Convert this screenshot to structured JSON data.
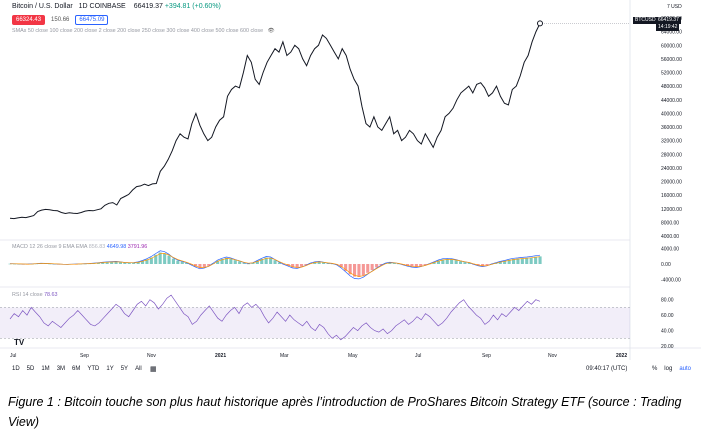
{
  "header": {
    "symbol": "Bitcoin / U.S. Dollar",
    "interval": "1D",
    "exchange": "COINBASE",
    "last": "66419.37",
    "change": "+394.81 (+0.60%)",
    "sell_price": "66324.43",
    "spread": "150.66",
    "buy_price": "66475.09"
  },
  "ma_label": "SMAs 50 close 100 close 200 close 2 close 200 close 250 close 300 close 400 close 500 close 600 close",
  "macd_label": {
    "name": "MACD 12 26 close 9 EMA EMA",
    "v1": "856.83",
    "v2": "4649.98",
    "v3": "3791.96"
  },
  "rsi_label": {
    "name": "RSI 14 close",
    "value": "78.63"
  },
  "price_axis": [
    "68000.00",
    "64000.00",
    "60000.00",
    "56000.00",
    "52000.00",
    "48000.00",
    "44000.00",
    "40000.00",
    "36000.00",
    "32000.00",
    "28000.00",
    "24000.00",
    "20000.00",
    "16000.00",
    "12000.00",
    "8000.00",
    "4000.00"
  ],
  "macd_axis": [
    "4000.00",
    "0.00",
    "-4000.00"
  ],
  "rsi_axis": [
    "80.00",
    "60.00",
    "40.00",
    "20.00"
  ],
  "time_axis": [
    "Jul",
    "Sep",
    "Nov",
    "2021",
    "Mar",
    "May",
    "Jul",
    "Sep",
    "Nov",
    "2022"
  ],
  "axis_top": "7 USD",
  "price_tag": {
    "ticker": "BTCUSD",
    "price": "66419.37",
    "countdown": "14:19:42"
  },
  "toolbar": {
    "ranges": [
      "1D",
      "5D",
      "1M",
      "3M",
      "6M",
      "YTD",
      "1Y",
      "5Y",
      "All"
    ],
    "clock": "09:40:17 (UTC)",
    "percent": "%",
    "log": "log",
    "auto": "auto"
  },
  "logo": "TV",
  "caption": "Figure 1 : Bitcoin touche son plus haut historique après l’introduction de ProShares Bitcoin Strategy ETF (source : Trading View)",
  "colors": {
    "up": "#089981",
    "down": "#f23645",
    "macd": "#2962ff",
    "signal": "#ff9800",
    "rsi": "#7e57c2"
  },
  "chart_data": {
    "type": "line",
    "series": [
      {
        "values": [
          9200,
          9100,
          9300,
          9500,
          9400,
          9700,
          10000,
          11200,
          11600,
          11800,
          11700,
          11500,
          11400,
          10900,
          10600,
          10800,
          10700,
          10600,
          10900,
          11300,
          11500,
          11400,
          11700,
          12000,
          13000,
          13600,
          13800,
          13100,
          15000,
          15600,
          16200,
          17500,
          18500,
          18700,
          19200,
          18800,
          19300,
          19400,
          23000,
          24500,
          26500,
          29000,
          32000,
          34000,
          33000,
          32500,
          37000,
          40000,
          36500,
          34000,
          32000,
          33000,
          36000,
          38000,
          39000,
          45000,
          47000,
          48000,
          47500,
          52000,
          57000,
          55000,
          50000,
          48500,
          52000,
          55000,
          57000,
          59000,
          58000,
          61000,
          57000,
          58000,
          60000,
          59000,
          56000,
          54000,
          57000,
          59000,
          60000,
          63000,
          62000,
          60000,
          58000,
          56000,
          59000,
          57000,
          53000,
          50000,
          48000,
          42000,
          37000,
          36000,
          39000,
          36000,
          35000,
          37000,
          39000,
          34000,
          35000,
          32000,
          33000,
          35000,
          34000,
          32000,
          31000,
          34000,
          32000,
          30000,
          33000,
          35000,
          39000,
          40000,
          41500,
          44000,
          46000,
          47000,
          48000,
          46000,
          48500,
          49000,
          47500,
          45000,
          46000,
          48000,
          45000,
          43000,
          42500,
          47000,
          48000,
          51000,
          55000,
          57000,
          61000,
          64000,
          66419
        ]
      }
    ],
    "ylim": [
      4000,
      68000
    ],
    "macd": {
      "hist": [
        80,
        60,
        20,
        -30,
        -10,
        40,
        100,
        180,
        150,
        90,
        20,
        -20,
        -60,
        -90,
        -50,
        -10,
        40,
        80,
        120,
        200,
        300,
        420,
        500,
        550,
        600,
        500,
        350,
        300,
        320,
        500,
        800,
        1200,
        1700,
        2400,
        3000,
        2800,
        2200,
        1400,
        900,
        600,
        300,
        -200,
        -700,
        -1100,
        -900,
        -500,
        200,
        900,
        1300,
        1600,
        1400,
        1000,
        700,
        300,
        100,
        300,
        800,
        1300,
        1700,
        1600,
        1000,
        400,
        -100,
        -500,
        -900,
        -1000,
        -700,
        -300,
        200,
        500,
        600,
        400,
        200,
        100,
        -200,
        -900,
        -1800,
        -2700,
        -3300,
        -3400,
        -3000,
        -2300,
        -1600,
        -900,
        -300,
        200,
        400,
        300,
        100,
        -200,
        -500,
        -700,
        -800,
        -600,
        -300,
        100,
        500,
        900,
        1200,
        1300,
        1200,
        1000,
        700,
        500,
        300,
        -100,
        -400,
        -600,
        -400,
        0,
        300,
        600,
        800,
        1100,
        1300,
        1400,
        1500,
        1600,
        1700,
        1900,
        2000
      ],
      "signal": [
        60,
        50,
        30,
        0,
        -20,
        10,
        70,
        140,
        140,
        100,
        40,
        -10,
        -50,
        -70,
        -60,
        -20,
        20,
        60,
        100,
        170,
        260,
        370,
        460,
        520,
        570,
        520,
        400,
        330,
        310,
        430,
        700,
        1050,
        1500,
        2100,
        2700,
        2750,
        2350,
        1700,
        1150,
        800,
        450,
        0,
        -500,
        -900,
        -900,
        -600,
        0,
        700,
        1100,
        1450,
        1400,
        1100,
        800,
        450,
        200,
        280,
        650,
        1100,
        1500,
        1550,
        1150,
        600,
        100,
        -300,
        -700,
        -900,
        -800,
        -450,
        50,
        400,
        550,
        450,
        280,
        150,
        -80,
        -650,
        -1450,
        -2300,
        -2950,
        -3250,
        -3100,
        -2550,
        -1900,
        -1200,
        -550,
        50,
        320,
        320,
        150,
        -100,
        -400,
        -600,
        -720,
        -620,
        -380,
        0,
        380,
        760,
        1060,
        1220,
        1200,
        1050,
        800,
        580,
        380,
        30,
        -280,
        -500,
        -440,
        -100,
        200,
        480,
        700,
        950,
        1150,
        1300,
        1420,
        1520,
        1620,
        1780,
        1920
      ],
      "ylim": [
        -5500,
        5500
      ]
    },
    "rsi": {
      "values": [
        55,
        62,
        58,
        66,
        60,
        70,
        64,
        58,
        50,
        46,
        52,
        48,
        44,
        50,
        56,
        60,
        66,
        60,
        54,
        48,
        46,
        50,
        56,
        62,
        68,
        74,
        70,
        62,
        58,
        66,
        74,
        78,
        72,
        80,
        76,
        68,
        74,
        82,
        86,
        78,
        70,
        62,
        58,
        48,
        52,
        60,
        66,
        72,
        64,
        56,
        52,
        60,
        66,
        70,
        62,
        72,
        76,
        70,
        74,
        68,
        58,
        50,
        56,
        64,
        58,
        52,
        60,
        54,
        50,
        46,
        52,
        44,
        40,
        48,
        44,
        36,
        30,
        34,
        28,
        32,
        38,
        44,
        40,
        46,
        50,
        44,
        40,
        38,
        42,
        36,
        40,
        46,
        50,
        54,
        48,
        52,
        58,
        54,
        62,
        58,
        52,
        46,
        50,
        56,
        64,
        70,
        76,
        80,
        72,
        66,
        60,
        56,
        48,
        52,
        60,
        54,
        62,
        58,
        64,
        70,
        66,
        72,
        78,
        74,
        80,
        78
      ],
      "ylim": [
        20,
        90
      ],
      "band": [
        30,
        70
      ]
    }
  }
}
